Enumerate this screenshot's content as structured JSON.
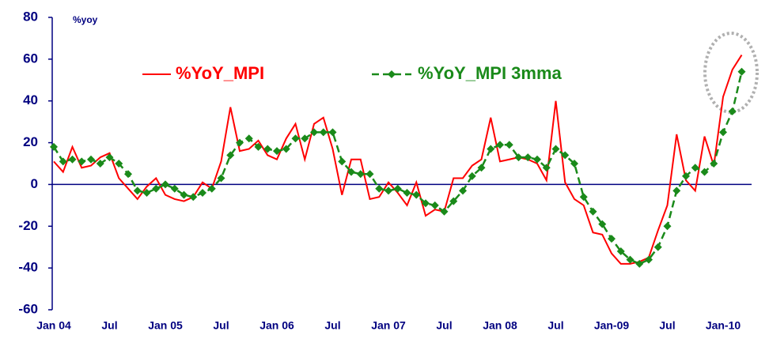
{
  "chart_data": {
    "type": "line",
    "y_axis_label": "%yoy",
    "categories": [
      "Jan 04",
      null,
      null,
      null,
      null,
      null,
      "Jul",
      null,
      null,
      null,
      null,
      null,
      "Jan 05",
      null,
      null,
      null,
      null,
      null,
      "Jul",
      null,
      null,
      null,
      null,
      null,
      "Jan 06",
      null,
      null,
      null,
      null,
      null,
      "Jul",
      null,
      null,
      null,
      null,
      null,
      "Jan 07",
      null,
      null,
      null,
      null,
      null,
      "Jul",
      null,
      null,
      null,
      null,
      null,
      "Jan 08",
      null,
      null,
      null,
      null,
      null,
      "Jul",
      null,
      null,
      null,
      null,
      null,
      "Jan-09",
      null,
      null,
      null,
      null,
      null,
      "Jul",
      null,
      null,
      null,
      null,
      null,
      "Jan-10",
      null,
      null
    ],
    "series": [
      {
        "name": "%YoY_MPI",
        "color": "#ff0000",
        "values": [
          11,
          6,
          18,
          8,
          9,
          13,
          15,
          3,
          -2,
          -7,
          -1,
          3,
          -5,
          -7,
          -8,
          -6,
          1,
          -2,
          11,
          37,
          16,
          17,
          21,
          14,
          12,
          22,
          29,
          12,
          29,
          32,
          17,
          -5,
          12,
          12,
          -7,
          -6,
          1,
          -4,
          -10,
          1,
          -15,
          -12,
          -13,
          3,
          3,
          9,
          12,
          32,
          11,
          12,
          13,
          12,
          10,
          2,
          40,
          1,
          -7,
          -10,
          -23,
          -24,
          -33,
          -38,
          -38,
          -37,
          -35,
          -22,
          -10,
          24,
          2,
          -3,
          23,
          9,
          42,
          55,
          62
        ]
      },
      {
        "name": "%YoY_MPI 3mma",
        "color": "#1a8a1a",
        "values": [
          18,
          11,
          12,
          11,
          12,
          10,
          13,
          10,
          5,
          -3,
          -4,
          -2,
          0,
          -2,
          -5,
          -6,
          -4,
          -2,
          3,
          14,
          20,
          22,
          18,
          17,
          16,
          17,
          22,
          22,
          25,
          25,
          25,
          11,
          6,
          5,
          5,
          -2,
          -3,
          -2,
          -4,
          -5,
          -9,
          -10,
          -13,
          -8,
          -3,
          4,
          8,
          17,
          19,
          19,
          13,
          13,
          12,
          8,
          17,
          14,
          10,
          -6,
          -13,
          -19,
          -26,
          -32,
          -36,
          -38,
          -36,
          -30,
          -20,
          -3,
          4,
          8,
          6,
          10,
          25,
          35,
          54
        ]
      }
    ],
    "ylim": [
      -60,
      80
    ],
    "yticks": [
      -60,
      -40,
      -20,
      0,
      20,
      40,
      60,
      80
    ]
  }
}
